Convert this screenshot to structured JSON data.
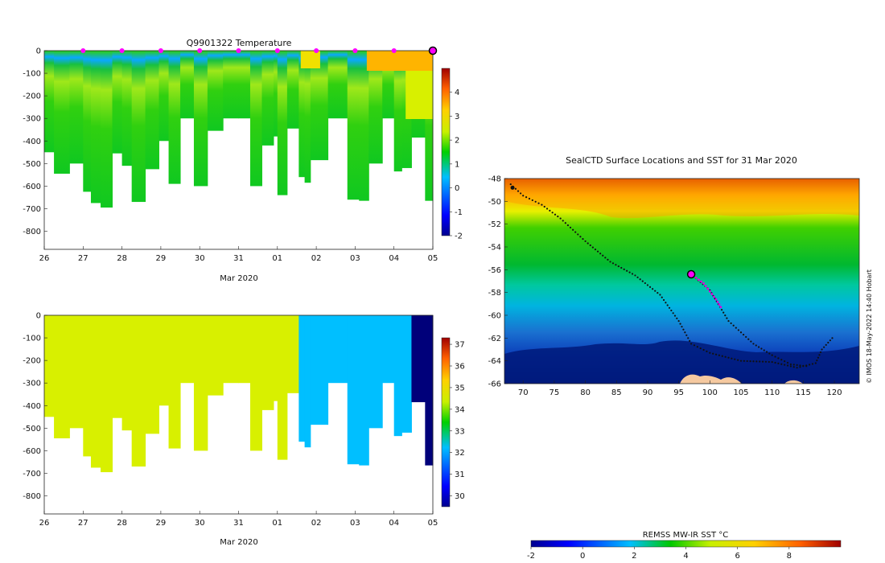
{
  "chart_data": [
    {
      "type": "heatmap",
      "title": "Q9901322  Temperature",
      "xlabel": "Mar 2020",
      "x_ticks": [
        "26",
        "27",
        "28",
        "29",
        "30",
        "31",
        "01",
        "02",
        "03",
        "04",
        "05"
      ],
      "x_range_days": [
        0,
        10
      ],
      "ylim": [
        -880,
        0
      ],
      "y_ticks": [
        0,
        -100,
        -200,
        -300,
        -400,
        -500,
        -600,
        -700,
        -800
      ],
      "colorbar": {
        "min": -2,
        "max": 5,
        "ticks": [
          4,
          3,
          2,
          1,
          0,
          -1,
          -2
        ]
      },
      "profile_bottom_depths_m": [
        {
          "x": 0.0,
          "d": -450
        },
        {
          "x": 0.25,
          "d": -545
        },
        {
          "x": 0.65,
          "d": -500
        },
        {
          "x": 1.0,
          "d": -625
        },
        {
          "x": 1.2,
          "d": -675
        },
        {
          "x": 1.45,
          "d": -695
        },
        {
          "x": 1.75,
          "d": -455
        },
        {
          "x": 2.0,
          "d": -510
        },
        {
          "x": 2.25,
          "d": -670
        },
        {
          "x": 2.6,
          "d": -525
        },
        {
          "x": 2.95,
          "d": -400
        },
        {
          "x": 3.2,
          "d": -590
        },
        {
          "x": 3.5,
          "d": -300
        },
        {
          "x": 3.85,
          "d": -600
        },
        {
          "x": 4.2,
          "d": -355
        },
        {
          "x": 4.6,
          "d": -300
        },
        {
          "x": 5.0,
          "d": -300
        },
        {
          "x": 5.3,
          "d": -600
        },
        {
          "x": 5.6,
          "d": -420
        },
        {
          "x": 5.9,
          "d": -380
        },
        {
          "x": 6.0,
          "d": -640
        },
        {
          "x": 6.25,
          "d": -345
        },
        {
          "x": 6.55,
          "d": -560
        },
        {
          "x": 6.7,
          "d": -585
        },
        {
          "x": 6.85,
          "d": -485
        },
        {
          "x": 7.3,
          "d": -300
        },
        {
          "x": 7.8,
          "d": -660
        },
        {
          "x": 8.1,
          "d": -665
        },
        {
          "x": 8.35,
          "d": -500
        },
        {
          "x": 8.7,
          "d": -300
        },
        {
          "x": 9.0,
          "d": -535
        },
        {
          "x": 9.2,
          "d": -520
        },
        {
          "x": 9.45,
          "d": -385
        },
        {
          "x": 9.8,
          "d": -665
        }
      ],
      "surface_profile_markers_days": [
        1,
        2,
        3,
        4,
        5,
        6,
        7,
        8,
        9
      ],
      "current_marker_day": 10
    },
    {
      "type": "heatmap",
      "title": "",
      "xlabel": "Mar 2020",
      "x_ticks": [
        "26",
        "27",
        "28",
        "29",
        "30",
        "31",
        "01",
        "02",
        "03",
        "04",
        "05"
      ],
      "ylim": [
        -880,
        0
      ],
      "y_ticks": [
        0,
        -100,
        -200,
        -300,
        -400,
        -500,
        -600,
        -700,
        -800
      ],
      "colorbar": {
        "min": 29.5,
        "max": 37.3,
        "ticks": [
          37,
          36,
          35,
          34,
          33,
          32,
          31,
          30
        ]
      },
      "salinity_blocks": [
        {
          "from_day": 0,
          "to_day": 6.55,
          "value": 34.2
        },
        {
          "from_day": 6.55,
          "to_day": 9.3,
          "value": 31.5
        },
        {
          "from_day": 9.3,
          "to_day": 10,
          "value": 29.6
        }
      ]
    },
    {
      "type": "heatmap",
      "title": "SealCTD Surface Locations and SST for 31 Mar 2020",
      "x_ticks": [
        "70",
        "75",
        "80",
        "85",
        "90",
        "95",
        "100",
        "105",
        "110",
        "115",
        "120"
      ],
      "xlim": [
        67,
        124
      ],
      "y_ticks": [
        "-48",
        "-50",
        "-52",
        "-54",
        "-56",
        "-58",
        "-60",
        "-62",
        "-64",
        "-66"
      ],
      "ylim": [
        -66,
        -48
      ],
      "colorbar_label": "REMSS MW-IR SST °C",
      "colorbar_ticks": [
        "-2",
        "0",
        "2",
        "4",
        "6",
        "8"
      ],
      "colorbar_range": [
        -2,
        10
      ],
      "track_points": [
        [
          68,
          -48.5
        ],
        [
          70,
          -49.5
        ],
        [
          73,
          -50.3
        ],
        [
          76,
          -51.5
        ],
        [
          80,
          -53.5
        ],
        [
          84,
          -55.3
        ],
        [
          88,
          -56.5
        ],
        [
          92,
          -58.2
        ],
        [
          95,
          -60.5
        ],
        [
          97,
          -62.5
        ],
        [
          100,
          -63.3
        ],
        [
          105,
          -64.0
        ],
        [
          110,
          -64.1
        ],
        [
          114,
          -64.6
        ],
        [
          117,
          -64.2
        ],
        [
          118,
          -63
        ],
        [
          120,
          -61.8
        ]
      ],
      "track_points_2": [
        [
          97,
          -56.4
        ],
        [
          100,
          -57.8
        ],
        [
          103,
          -60.5
        ],
        [
          107,
          -62.5
        ],
        [
          110,
          -63.5
        ],
        [
          113,
          -64.3
        ],
        [
          116,
          -64.5
        ]
      ],
      "recent_points": [
        [
          97,
          -56.4
        ],
        [
          99,
          -57.2
        ],
        [
          101,
          -58.6
        ],
        [
          102,
          -59.5
        ]
      ],
      "current_location": [
        97,
        -56.4
      ],
      "credit": "© IMOS 18-May-2022 14:40 Hobart"
    }
  ]
}
